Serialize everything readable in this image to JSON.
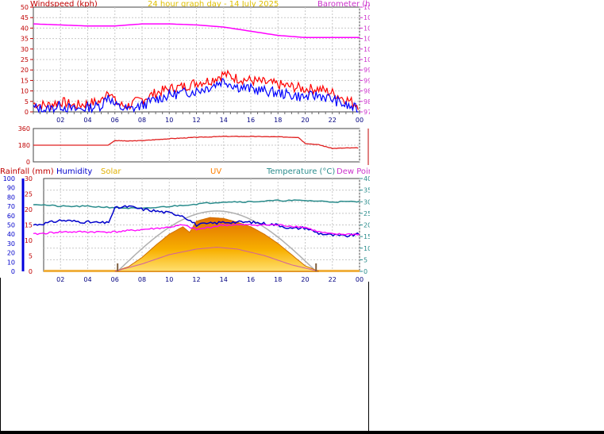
{
  "header": {
    "left_label": "Windspeed (kph)",
    "center_label": "24 hour graph day - 14 July 2025",
    "right_label": "Barometer (hPa)"
  },
  "colors": {
    "wind_red": "#ff0000",
    "wind_blue": "#0000ff",
    "barometer": "#ff00ff",
    "direction": "#e02020",
    "temperature": "#2a8c8c",
    "humidity": "#0000cc",
    "dewpoint": "#ff00ff",
    "solar": "#f0a000",
    "uv": "#ff8000",
    "grid": "#c8c8c8",
    "rain_axis": "#0000dd"
  },
  "chart_data": [
    {
      "type": "line",
      "name": "wind-barometer",
      "x_ticks": [
        "02",
        "04",
        "06",
        "08",
        "10",
        "12",
        "14",
        "16",
        "18",
        "20",
        "22",
        "00"
      ],
      "y_left_ticks": [
        0,
        5,
        10,
        15,
        20,
        25,
        30,
        35,
        40,
        45,
        50
      ],
      "y_left_range": [
        0,
        50
      ],
      "y_right_ticks": [
        975,
        980,
        985,
        990,
        995,
        1000,
        1005,
        1010,
        1015,
        1020,
        1025
      ],
      "y_right_range": [
        975,
        1025
      ],
      "xlabel": "",
      "series": [
        {
          "name": "Windspeed (kph)",
          "hours": [
            0,
            1,
            2,
            3,
            4,
            5,
            5.5,
            6,
            6.5,
            7,
            8,
            9,
            10,
            11,
            12,
            13,
            14,
            15,
            16,
            17,
            18,
            19,
            20,
            21,
            22,
            23,
            24
          ],
          "values": [
            2,
            1,
            3,
            1,
            2,
            3,
            8,
            3,
            2,
            1,
            3,
            6,
            8,
            9,
            10,
            12,
            15,
            12,
            11,
            10,
            9,
            8,
            7,
            8,
            6,
            3,
            1
          ]
        },
        {
          "name": "Wind gust",
          "hours": [
            0,
            1,
            2,
            3,
            4,
            5,
            5.5,
            6,
            6.5,
            7,
            8,
            9,
            10,
            11,
            12,
            13,
            14,
            15,
            16,
            17,
            18,
            19,
            20,
            21,
            22,
            23,
            24
          ],
          "values": [
            4,
            3,
            5,
            3,
            4,
            5,
            11,
            5,
            3,
            3,
            6,
            9,
            11,
            12,
            14,
            15,
            18,
            16,
            15,
            14,
            13,
            12,
            11,
            11,
            9,
            6,
            3
          ]
        },
        {
          "name": "Barometer (hPa)",
          "hours": [
            0,
            2,
            4,
            6,
            8,
            10,
            12,
            14,
            16,
            18,
            20,
            22,
            24
          ],
          "values": [
            1017,
            1016.5,
            1016,
            1016,
            1017,
            1017,
            1016.5,
            1015.5,
            1013.5,
            1011.5,
            1010.5,
            1010.5,
            1010.5
          ]
        }
      ]
    },
    {
      "type": "line",
      "name": "wind-direction",
      "y_range": [
        0,
        360
      ],
      "y_ticks": [
        0,
        180,
        360
      ],
      "right_labels": [
        "N",
        "W",
        "S",
        "E",
        "N"
      ],
      "series": [
        {
          "name": "Direction",
          "hours": [
            0,
            2,
            4,
            5.5,
            6,
            7,
            8,
            10,
            12,
            14,
            16,
            18,
            19.5,
            20,
            21,
            22,
            23,
            24
          ],
          "values": [
            180,
            180,
            180,
            180,
            230,
            225,
            230,
            250,
            265,
            275,
            275,
            270,
            265,
            200,
            185,
            145,
            150,
            150
          ]
        }
      ]
    },
    {
      "type": "line",
      "name": "temperature-humidity-solar",
      "x_ticks": [
        "02",
        "04",
        "06",
        "08",
        "10",
        "12",
        "14",
        "16",
        "18",
        "20",
        "22",
        "00"
      ],
      "legend": [
        "Rainfall (mm)",
        "Humidity",
        "Solar",
        "UV",
        "Temperature (°C)",
        "Dew Point (°C)"
      ],
      "y_left_ticks": [
        0,
        10,
        20,
        30,
        40,
        50,
        60,
        70,
        80,
        90,
        100
      ],
      "y_left_range": [
        0,
        100
      ],
      "y_rain_ticks": [
        0,
        5,
        10,
        15,
        20,
        25,
        30
      ],
      "y_right_ticks": [
        0,
        5,
        10,
        15,
        20,
        25,
        30,
        35,
        40
      ],
      "y_right_range": [
        0,
        40
      ],
      "series": [
        {
          "name": "Temperature (°C)",
          "hours": [
            0,
            2,
            4,
            6,
            8,
            10,
            12,
            14,
            16,
            18,
            20,
            22,
            24
          ],
          "values": [
            29,
            28,
            28,
            27.5,
            27,
            28,
            29,
            30,
            30,
            30.5,
            30.5,
            30,
            30
          ]
        },
        {
          "name": "Humidity",
          "hours": [
            0,
            1,
            2,
            4,
            5.5,
            6,
            7,
            8,
            9,
            10,
            11,
            12,
            14,
            16,
            18,
            19,
            20,
            21,
            22,
            23,
            24
          ],
          "values": [
            50,
            52,
            55,
            53,
            52,
            68,
            70,
            67,
            65,
            63,
            60,
            50,
            53,
            53,
            50,
            46,
            47,
            41,
            39,
            38,
            40
          ]
        },
        {
          "name": "Dew Point (°C)",
          "hours": [
            0,
            2,
            4,
            6,
            8,
            10,
            11,
            12,
            14,
            16,
            18,
            20,
            21,
            22,
            24
          ],
          "values": [
            16,
            17,
            17,
            17,
            18,
            19,
            20,
            18,
            20,
            20,
            20,
            19,
            17,
            16,
            16
          ]
        },
        {
          "name": "Solar",
          "hours": [
            6,
            7,
            8,
            9,
            10,
            11,
            11.5,
            12,
            13,
            14,
            15,
            16,
            17,
            18,
            19,
            20,
            21
          ],
          "values": [
            0,
            5,
            15,
            28,
            40,
            48,
            42,
            54,
            58,
            57,
            53,
            48,
            40,
            30,
            18,
            6,
            0
          ]
        },
        {
          "name": "UV",
          "hours": [
            6,
            8,
            10,
            12,
            13.5,
            15,
            17,
            19,
            21
          ],
          "values": [
            0,
            8,
            18,
            24,
            26,
            24,
            17,
            7,
            0
          ]
        }
      ]
    }
  ]
}
